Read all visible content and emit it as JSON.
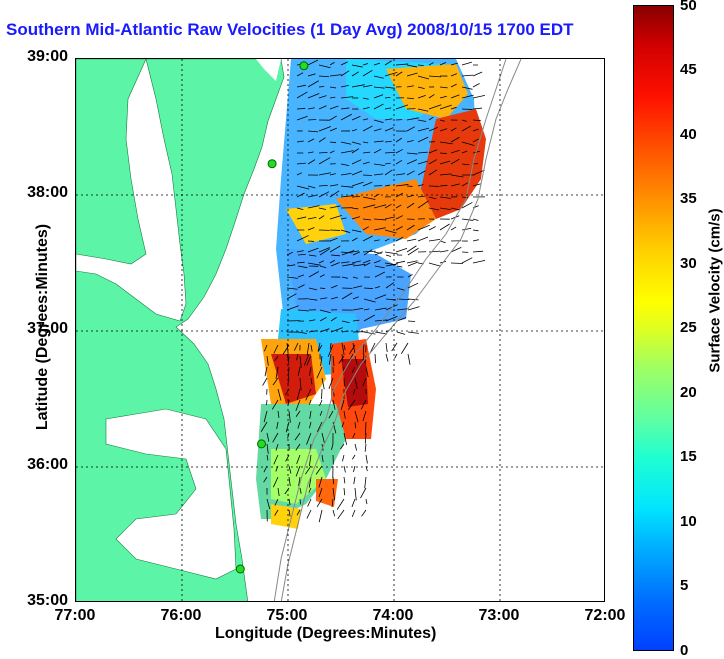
{
  "title": "Southern Mid-Atlantic Raw Velocities (1 Day Avg) 2008/10/15 1700 EDT",
  "x_axis": {
    "label": "Longitude (Degrees:Minutes)",
    "ticks": [
      "77:00",
      "76:00",
      "75:00",
      "74:00",
      "73:00",
      "72:00"
    ]
  },
  "y_axis": {
    "label": "Latitude (Degrees:Minutes)",
    "ticks": [
      "39:00",
      "38:00",
      "37:00",
      "36:00",
      "35:00"
    ]
  },
  "colorbar": {
    "label": "Surface Velocity (cm/s)",
    "ticks": [
      "50",
      "45",
      "40",
      "35",
      "30",
      "25",
      "20",
      "15",
      "10",
      "5",
      "0"
    ],
    "range": [
      0,
      50
    ]
  },
  "colors": {
    "land": "#5cf5a8",
    "title": "#1a1aff",
    "station": "#22dd22",
    "arrow": "#000000"
  },
  "map": {
    "extent": {
      "lon": [
        -77,
        -72
      ],
      "lat": [
        35,
        39
      ]
    },
    "stations": [
      {
        "lon": -74.85,
        "lat": 38.95
      },
      {
        "lon": -75.15,
        "lat": 38.23
      },
      {
        "lon": -75.25,
        "lat": 36.17
      },
      {
        "lon": -75.45,
        "lat": 35.25
      }
    ]
  }
}
